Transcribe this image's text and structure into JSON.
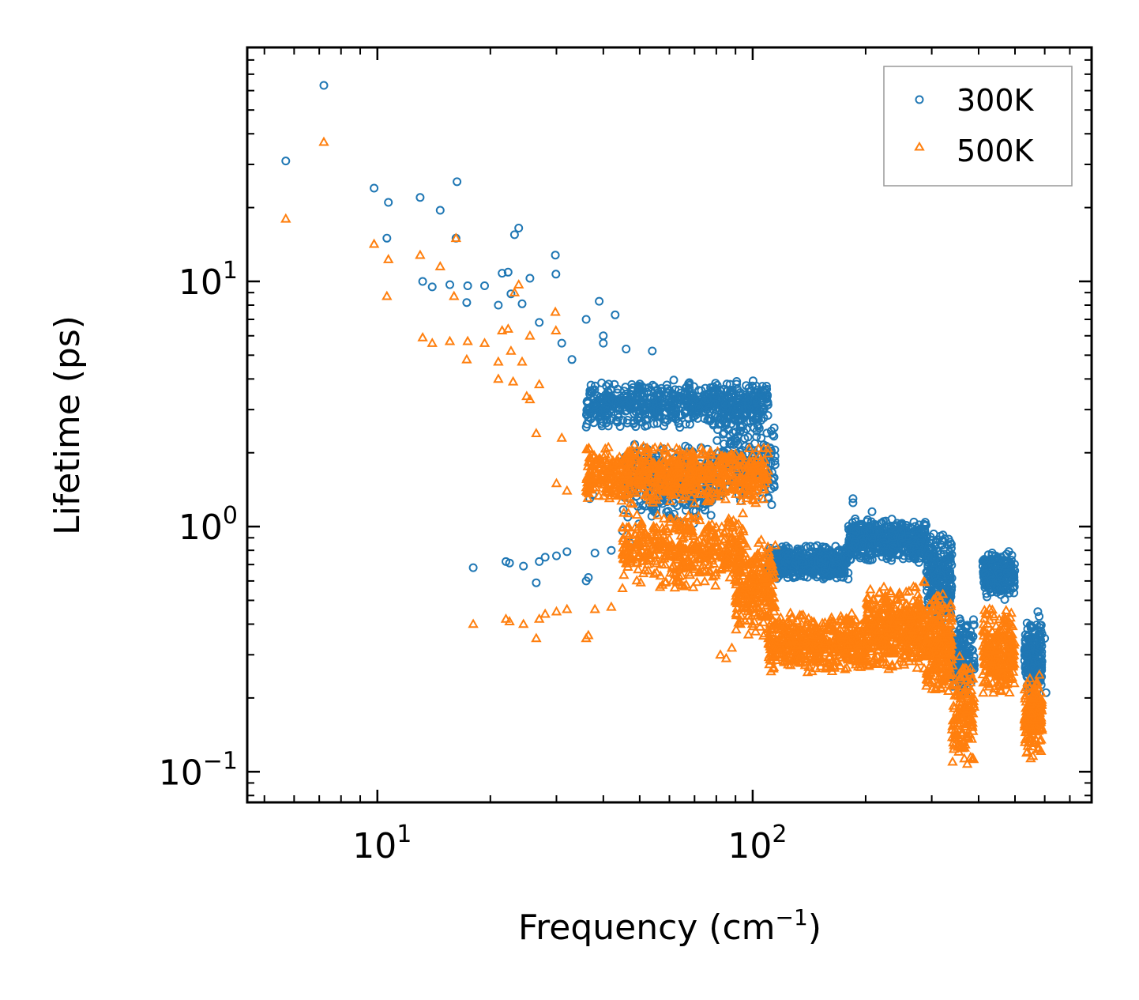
{
  "chart_data": {
    "type": "scatter",
    "xscale": "log",
    "yscale": "log",
    "xlabel": "Frequency (cm",
    "xlabel_unit_exp": "−1",
    "xlabel_close": ")",
    "ylabel": "Lifetime (ps)",
    "xlim": [
      4.5,
      800
    ],
    "ylim": [
      0.075,
      90
    ],
    "x_ticks": [
      {
        "value": 10,
        "base": "10",
        "exp": "1"
      },
      {
        "value": 100,
        "base": "10",
        "exp": "2"
      }
    ],
    "y_ticks": [
      {
        "value": 0.1,
        "base": "10",
        "exp": "−1"
      },
      {
        "value": 1,
        "base": "10",
        "exp": "0"
      },
      {
        "value": 10,
        "base": "10",
        "exp": "1"
      }
    ],
    "legend_position": "upper-right",
    "series": [
      {
        "name": "300K",
        "marker": "circle",
        "color": "#1f77b4",
        "bands": [
          {
            "x": [
              36,
              110
            ],
            "y": [
              2.5,
              4.0
            ],
            "n": 700
          },
          {
            "x": [
              45,
              78
            ],
            "y": [
              1.0,
              2.2
            ],
            "n": 300
          },
          {
            "x": [
              110,
              180
            ],
            "y": [
              0.6,
              0.85
            ],
            "n": 450
          },
          {
            "x": [
              180,
              290
            ],
            "y": [
              0.7,
              1.1
            ],
            "n": 450
          },
          {
            "x": [
              290,
              340
            ],
            "y": [
              0.4,
              0.95
            ],
            "n": 250
          },
          {
            "x": [
              340,
              390
            ],
            "y": [
              0.2,
              0.45
            ],
            "n": 150
          },
          {
            "x": [
              410,
              500
            ],
            "y": [
              0.5,
              0.8
            ],
            "n": 250
          },
          {
            "x": [
              530,
              590
            ],
            "y": [
              0.2,
              0.42
            ],
            "n": 180
          },
          {
            "x": [
              80,
              115
            ],
            "y": [
              1.2,
              2.8
            ],
            "n": 200
          }
        ],
        "points": [
          {
            "x": 5.7,
            "y": 31
          },
          {
            "x": 7.2,
            "y": 63
          },
          {
            "x": 9.8,
            "y": 24
          },
          {
            "x": 10.7,
            "y": 21
          },
          {
            "x": 10.6,
            "y": 15
          },
          {
            "x": 13,
            "y": 22
          },
          {
            "x": 14.7,
            "y": 19.5
          },
          {
            "x": 16.3,
            "y": 25.5
          },
          {
            "x": 16.2,
            "y": 15
          },
          {
            "x": 13.2,
            "y": 10
          },
          {
            "x": 14,
            "y": 9.5
          },
          {
            "x": 15.6,
            "y": 9.7
          },
          {
            "x": 17.4,
            "y": 9.6
          },
          {
            "x": 17.3,
            "y": 8.2
          },
          {
            "x": 19.3,
            "y": 9.6
          },
          {
            "x": 21.5,
            "y": 10.8
          },
          {
            "x": 22.3,
            "y": 10.9
          },
          {
            "x": 23.2,
            "y": 15.5
          },
          {
            "x": 23.8,
            "y": 16.5
          },
          {
            "x": 21,
            "y": 8
          },
          {
            "x": 22.7,
            "y": 8.9
          },
          {
            "x": 24.3,
            "y": 8.1
          },
          {
            "x": 25.5,
            "y": 10.3
          },
          {
            "x": 29.8,
            "y": 12.8
          },
          {
            "x": 29.9,
            "y": 10.7
          },
          {
            "x": 36,
            "y": 7
          },
          {
            "x": 39,
            "y": 8.3
          },
          {
            "x": 43,
            "y": 7.3
          },
          {
            "x": 27,
            "y": 6.8
          },
          {
            "x": 31,
            "y": 5.6
          },
          {
            "x": 33,
            "y": 4.8
          },
          {
            "x": 46,
            "y": 5.3
          },
          {
            "x": 54,
            "y": 5.2
          },
          {
            "x": 40,
            "y": 6
          },
          {
            "x": 40,
            "y": 5.6
          },
          {
            "x": 18,
            "y": 0.68
          },
          {
            "x": 22,
            "y": 0.72
          },
          {
            "x": 22.5,
            "y": 0.71
          },
          {
            "x": 24.5,
            "y": 0.69
          },
          {
            "x": 26.5,
            "y": 0.59
          },
          {
            "x": 27,
            "y": 0.72
          },
          {
            "x": 28,
            "y": 0.75
          },
          {
            "x": 30,
            "y": 0.76
          },
          {
            "x": 32,
            "y": 0.79
          },
          {
            "x": 36,
            "y": 0.6
          },
          {
            "x": 36.5,
            "y": 0.62
          },
          {
            "x": 38,
            "y": 0.78
          },
          {
            "x": 42,
            "y": 0.8
          },
          {
            "x": 45,
            "y": 0.96
          },
          {
            "x": 47,
            "y": 0.86
          },
          {
            "x": 50,
            "y": 0.83
          },
          {
            "x": 36.8,
            "y": 1.3
          },
          {
            "x": 37.5,
            "y": 1.35
          },
          {
            "x": 185,
            "y": 1.3
          },
          {
            "x": 185,
            "y": 1.25
          },
          {
            "x": 208,
            "y": 1.15
          },
          {
            "x": 575,
            "y": 0.45
          },
          {
            "x": 580,
            "y": 0.43
          },
          {
            "x": 600,
            "y": 0.35
          },
          {
            "x": 605,
            "y": 0.21
          }
        ]
      },
      {
        "name": "500K",
        "marker": "triangle",
        "color": "#ff7f0e",
        "bands": [
          {
            "x": [
              36,
              110
            ],
            "y": [
              1.2,
              2.2
            ],
            "n": 700
          },
          {
            "x": [
              45,
              95
            ],
            "y": [
              0.55,
              1.2
            ],
            "n": 450
          },
          {
            "x": [
              90,
              115
            ],
            "y": [
              0.35,
              0.9
            ],
            "n": 250
          },
          {
            "x": [
              110,
              200
            ],
            "y": [
              0.25,
              0.45
            ],
            "n": 500
          },
          {
            "x": [
              200,
              290
            ],
            "y": [
              0.25,
              0.6
            ],
            "n": 450
          },
          {
            "x": [
              290,
              340
            ],
            "y": [
              0.2,
              0.55
            ],
            "n": 250
          },
          {
            "x": [
              340,
              390
            ],
            "y": [
              0.1,
              0.3
            ],
            "n": 150
          },
          {
            "x": [
              410,
              500
            ],
            "y": [
              0.2,
              0.48
            ],
            "n": 250
          },
          {
            "x": [
              530,
              590
            ],
            "y": [
              0.11,
              0.25
            ],
            "n": 180
          }
        ],
        "points": [
          {
            "x": 5.7,
            "y": 18
          },
          {
            "x": 7.2,
            "y": 37
          },
          {
            "x": 9.8,
            "y": 14.2
          },
          {
            "x": 10.7,
            "y": 12.3
          },
          {
            "x": 10.6,
            "y": 8.7
          },
          {
            "x": 13,
            "y": 12.8
          },
          {
            "x": 14.7,
            "y": 11.5
          },
          {
            "x": 16.2,
            "y": 15
          },
          {
            "x": 16,
            "y": 8.7
          },
          {
            "x": 13.2,
            "y": 5.9
          },
          {
            "x": 14,
            "y": 5.6
          },
          {
            "x": 15.6,
            "y": 5.7
          },
          {
            "x": 17.4,
            "y": 5.7
          },
          {
            "x": 17.3,
            "y": 4.8
          },
          {
            "x": 19.3,
            "y": 5.6
          },
          {
            "x": 21.5,
            "y": 6.3
          },
          {
            "x": 22.3,
            "y": 6.4
          },
          {
            "x": 23.2,
            "y": 9
          },
          {
            "x": 23.8,
            "y": 9.7
          },
          {
            "x": 21,
            "y": 4.7
          },
          {
            "x": 22.7,
            "y": 5.2
          },
          {
            "x": 24.3,
            "y": 4.7
          },
          {
            "x": 25.5,
            "y": 6
          },
          {
            "x": 29.8,
            "y": 7.5
          },
          {
            "x": 29.9,
            "y": 6.3
          },
          {
            "x": 21,
            "y": 4
          },
          {
            "x": 23,
            "y": 3.9
          },
          {
            "x": 25,
            "y": 3.4
          },
          {
            "x": 25.5,
            "y": 3.3
          },
          {
            "x": 26.5,
            "y": 2.4
          },
          {
            "x": 27,
            "y": 3.8
          },
          {
            "x": 18,
            "y": 0.4
          },
          {
            "x": 22,
            "y": 0.42
          },
          {
            "x": 22.5,
            "y": 0.41
          },
          {
            "x": 24.5,
            "y": 0.4
          },
          {
            "x": 26.5,
            "y": 0.35
          },
          {
            "x": 27,
            "y": 0.42
          },
          {
            "x": 28,
            "y": 0.44
          },
          {
            "x": 30,
            "y": 0.45
          },
          {
            "x": 32,
            "y": 0.46
          },
          {
            "x": 36,
            "y": 0.35
          },
          {
            "x": 36.5,
            "y": 0.36
          },
          {
            "x": 38,
            "y": 0.46
          },
          {
            "x": 42,
            "y": 0.47
          },
          {
            "x": 45,
            "y": 0.56
          },
          {
            "x": 82,
            "y": 0.3
          },
          {
            "x": 85,
            "y": 0.29
          },
          {
            "x": 88,
            "y": 0.32
          },
          {
            "x": 30,
            "y": 1.5
          },
          {
            "x": 31,
            "y": 2.3
          },
          {
            "x": 32,
            "y": 1.4
          }
        ]
      }
    ]
  }
}
